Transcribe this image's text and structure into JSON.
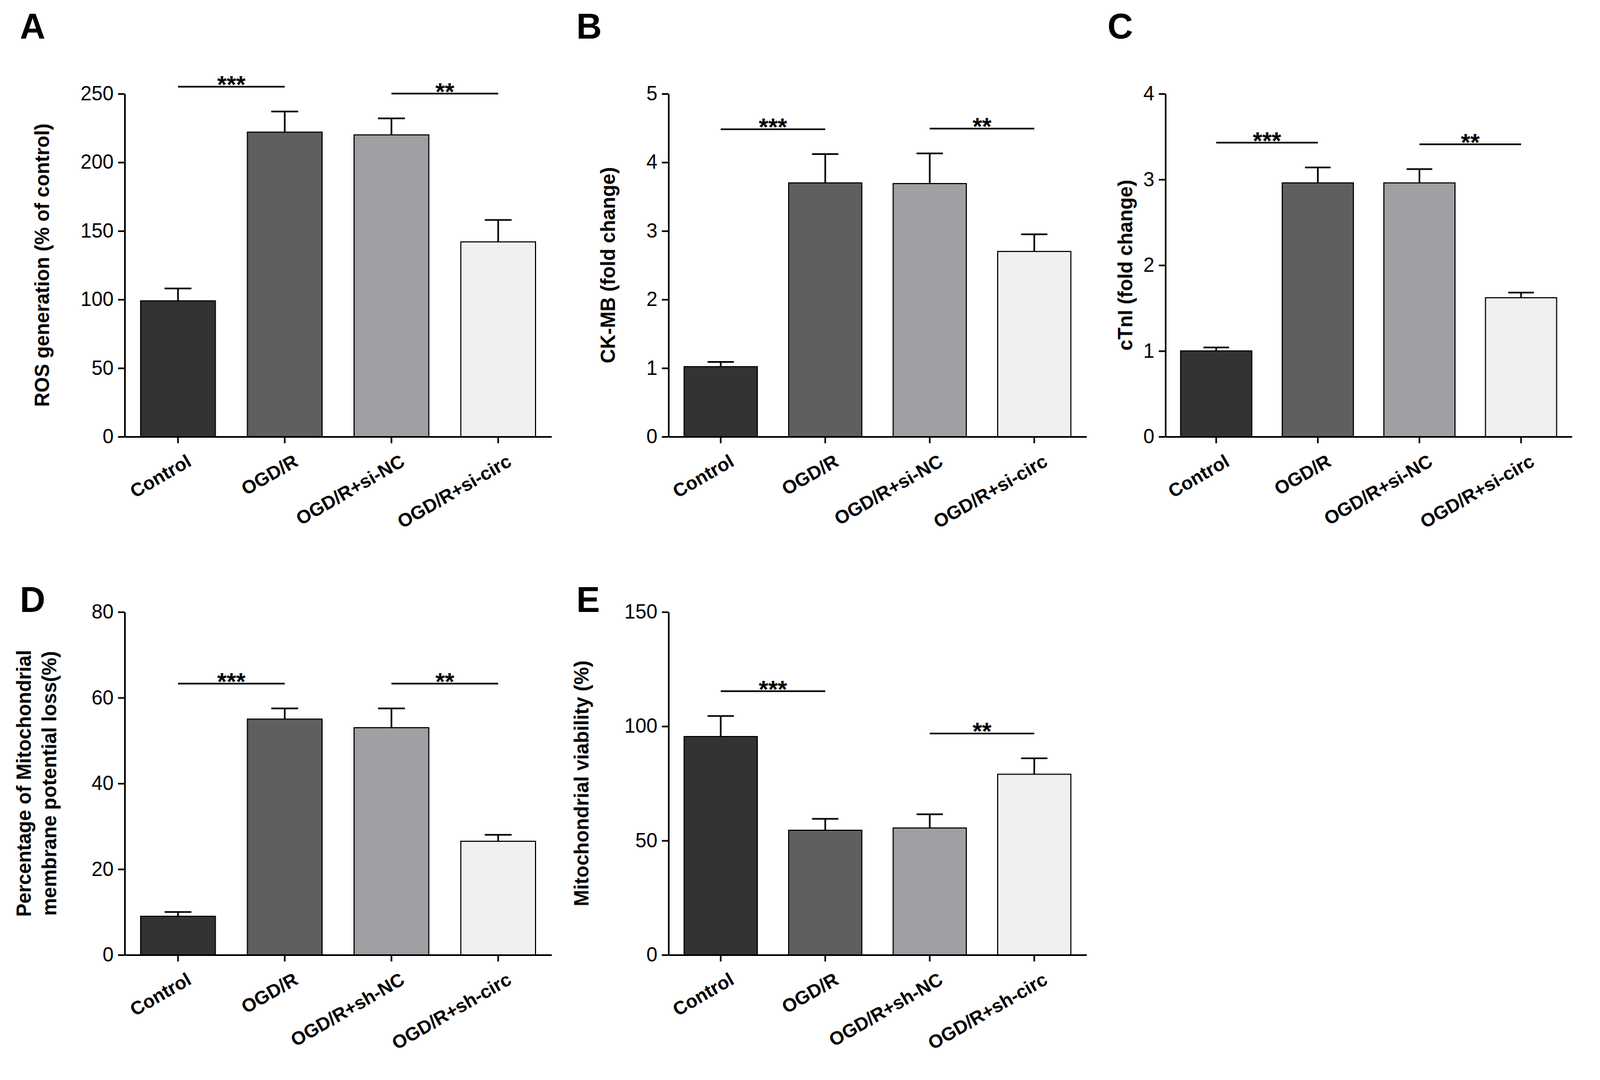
{
  "chart_data": [
    {
      "type": "bar",
      "title": "A",
      "ylabel": [
        "ROS generation (% of control)"
      ],
      "categories": [
        "Control",
        "OGD/R",
        "OGD/R+si-NC",
        "OGD/R+si-circ"
      ],
      "values": [
        99,
        222,
        220,
        142
      ],
      "errors": [
        9,
        15,
        12,
        16
      ],
      "colors": [
        "#333333",
        "#5f5f5f",
        "#a0a0a4",
        "#f0f0f0"
      ],
      "ylim": [
        0,
        250
      ],
      "yticks": [
        0,
        50,
        100,
        150,
        200,
        250
      ],
      "annotations": [
        {
          "text": "***",
          "from": 0,
          "to": 1
        },
        {
          "text": "**",
          "from": 2,
          "to": 3
        }
      ]
    },
    {
      "type": "bar",
      "title": "B",
      "ylabel": [
        "CK-MB (fold change)"
      ],
      "categories": [
        "Control",
        "OGD/R",
        "OGD/R+si-NC",
        "OGD/R+si-circ"
      ],
      "values": [
        1.02,
        3.7,
        3.69,
        2.7
      ],
      "errors": [
        0.07,
        0.42,
        0.44,
        0.25
      ],
      "colors": [
        "#333333",
        "#5f5f5f",
        "#a0a0a4",
        "#f0f0f0"
      ],
      "ylim": [
        0,
        5
      ],
      "yticks": [
        0,
        1,
        2,
        3,
        4,
        5
      ],
      "annotations": [
        {
          "text": "***",
          "from": 0,
          "to": 1
        },
        {
          "text": "**",
          "from": 2,
          "to": 3
        }
      ]
    },
    {
      "type": "bar",
      "title": "C",
      "ylabel": [
        "cTnI (fold change)"
      ],
      "categories": [
        "Control",
        "OGD/R",
        "OGD/R+si-NC",
        "OGD/R+si-circ"
      ],
      "values": [
        1.0,
        2.96,
        2.96,
        1.62
      ],
      "errors": [
        0.04,
        0.18,
        0.16,
        0.06
      ],
      "colors": [
        "#333333",
        "#5f5f5f",
        "#a0a0a4",
        "#f0f0f0"
      ],
      "ylim": [
        0,
        4
      ],
      "yticks": [
        0,
        1,
        2,
        3,
        4
      ],
      "annotations": [
        {
          "text": "***",
          "from": 0,
          "to": 1
        },
        {
          "text": "**",
          "from": 2,
          "to": 3
        }
      ]
    },
    {
      "type": "bar",
      "title": "D",
      "ylabel": [
        "Percentage of Mitochondrial",
        "membrane potential loss(%)"
      ],
      "categories": [
        "Control",
        "OGD/R",
        "OGD/R+sh-NC",
        "OGD/R+sh-circ"
      ],
      "values": [
        9,
        55,
        53,
        26.5
      ],
      "errors": [
        1,
        2.5,
        4.5,
        1.5
      ],
      "colors": [
        "#333333",
        "#5f5f5f",
        "#a0a0a4",
        "#f0f0f0"
      ],
      "ylim": [
        0,
        80
      ],
      "yticks": [
        0,
        20,
        40,
        60,
        80
      ],
      "annotations": [
        {
          "text": "***",
          "from": 0,
          "to": 1
        },
        {
          "text": "**",
          "from": 2,
          "to": 3
        }
      ]
    },
    {
      "type": "bar",
      "title": "E",
      "ylabel": [
        "Mitochondrial viability (%)"
      ],
      "categories": [
        "Control",
        "OGD/R",
        "OGD/R+sh-NC",
        "OGD/R+sh-circ"
      ],
      "values": [
        95.5,
        54.5,
        55.5,
        79
      ],
      "errors": [
        9,
        5,
        6,
        7
      ],
      "colors": [
        "#333333",
        "#5f5f5f",
        "#a0a0a4",
        "#f0f0f0"
      ],
      "ylim": [
        0,
        150
      ],
      "yticks": [
        0,
        50,
        100,
        150
      ],
      "annotations": [
        {
          "text": "***",
          "from": 0,
          "to": 1
        },
        {
          "text": "**",
          "from": 2,
          "to": 3
        }
      ]
    }
  ]
}
